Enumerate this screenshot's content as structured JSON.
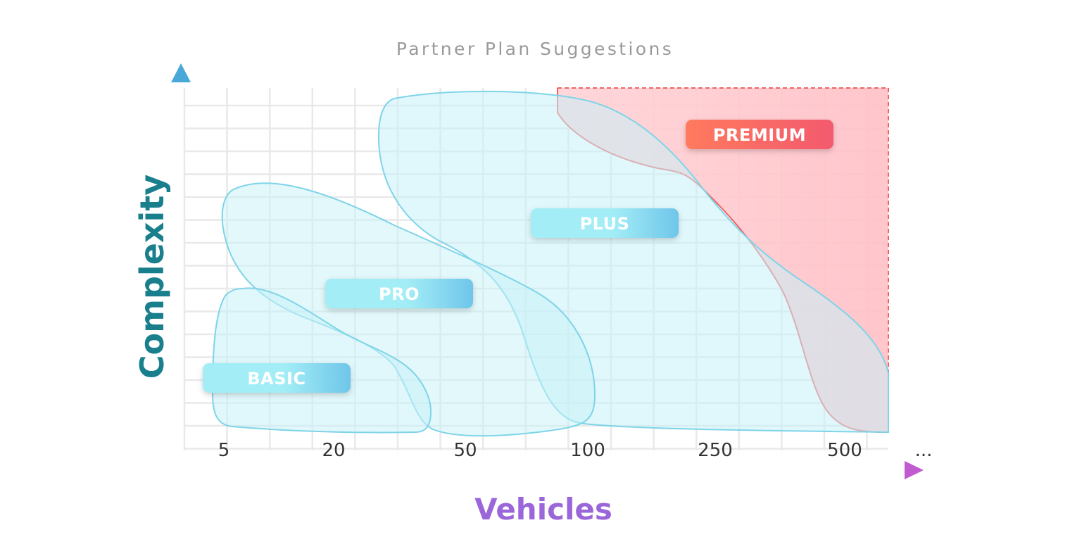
{
  "chart_data": {
    "type": "area",
    "title": "Partner Plan Suggestions",
    "xlabel": "Vehicles",
    "ylabel": "Complexity",
    "x_ticks": [
      "5",
      "20",
      "50",
      "100",
      "250",
      "500",
      "..."
    ],
    "grid": true,
    "series": [
      {
        "name": "BASIC",
        "x_range": [
          "5",
          "50"
        ],
        "color": "#7fdcec"
      },
      {
        "name": "PRO",
        "x_range": [
          "5",
          "100"
        ],
        "color": "#7fdcec"
      },
      {
        "name": "PLUS",
        "x_range": [
          "50",
          "500"
        ],
        "color": "#7fdcec"
      },
      {
        "name": "PREMIUM",
        "x_range": [
          "100",
          "500"
        ],
        "color": "#f06a6a"
      }
    ],
    "colors": {
      "axis_y": "#1a6f80",
      "axis_x": "#b063d6",
      "grid": "#e9e9e9",
      "blue_fill": "#bdeff7",
      "blue_stroke": "#6fd3e6",
      "red_fill": "#ffc4c8",
      "red_stroke": "#f06262"
    }
  }
}
